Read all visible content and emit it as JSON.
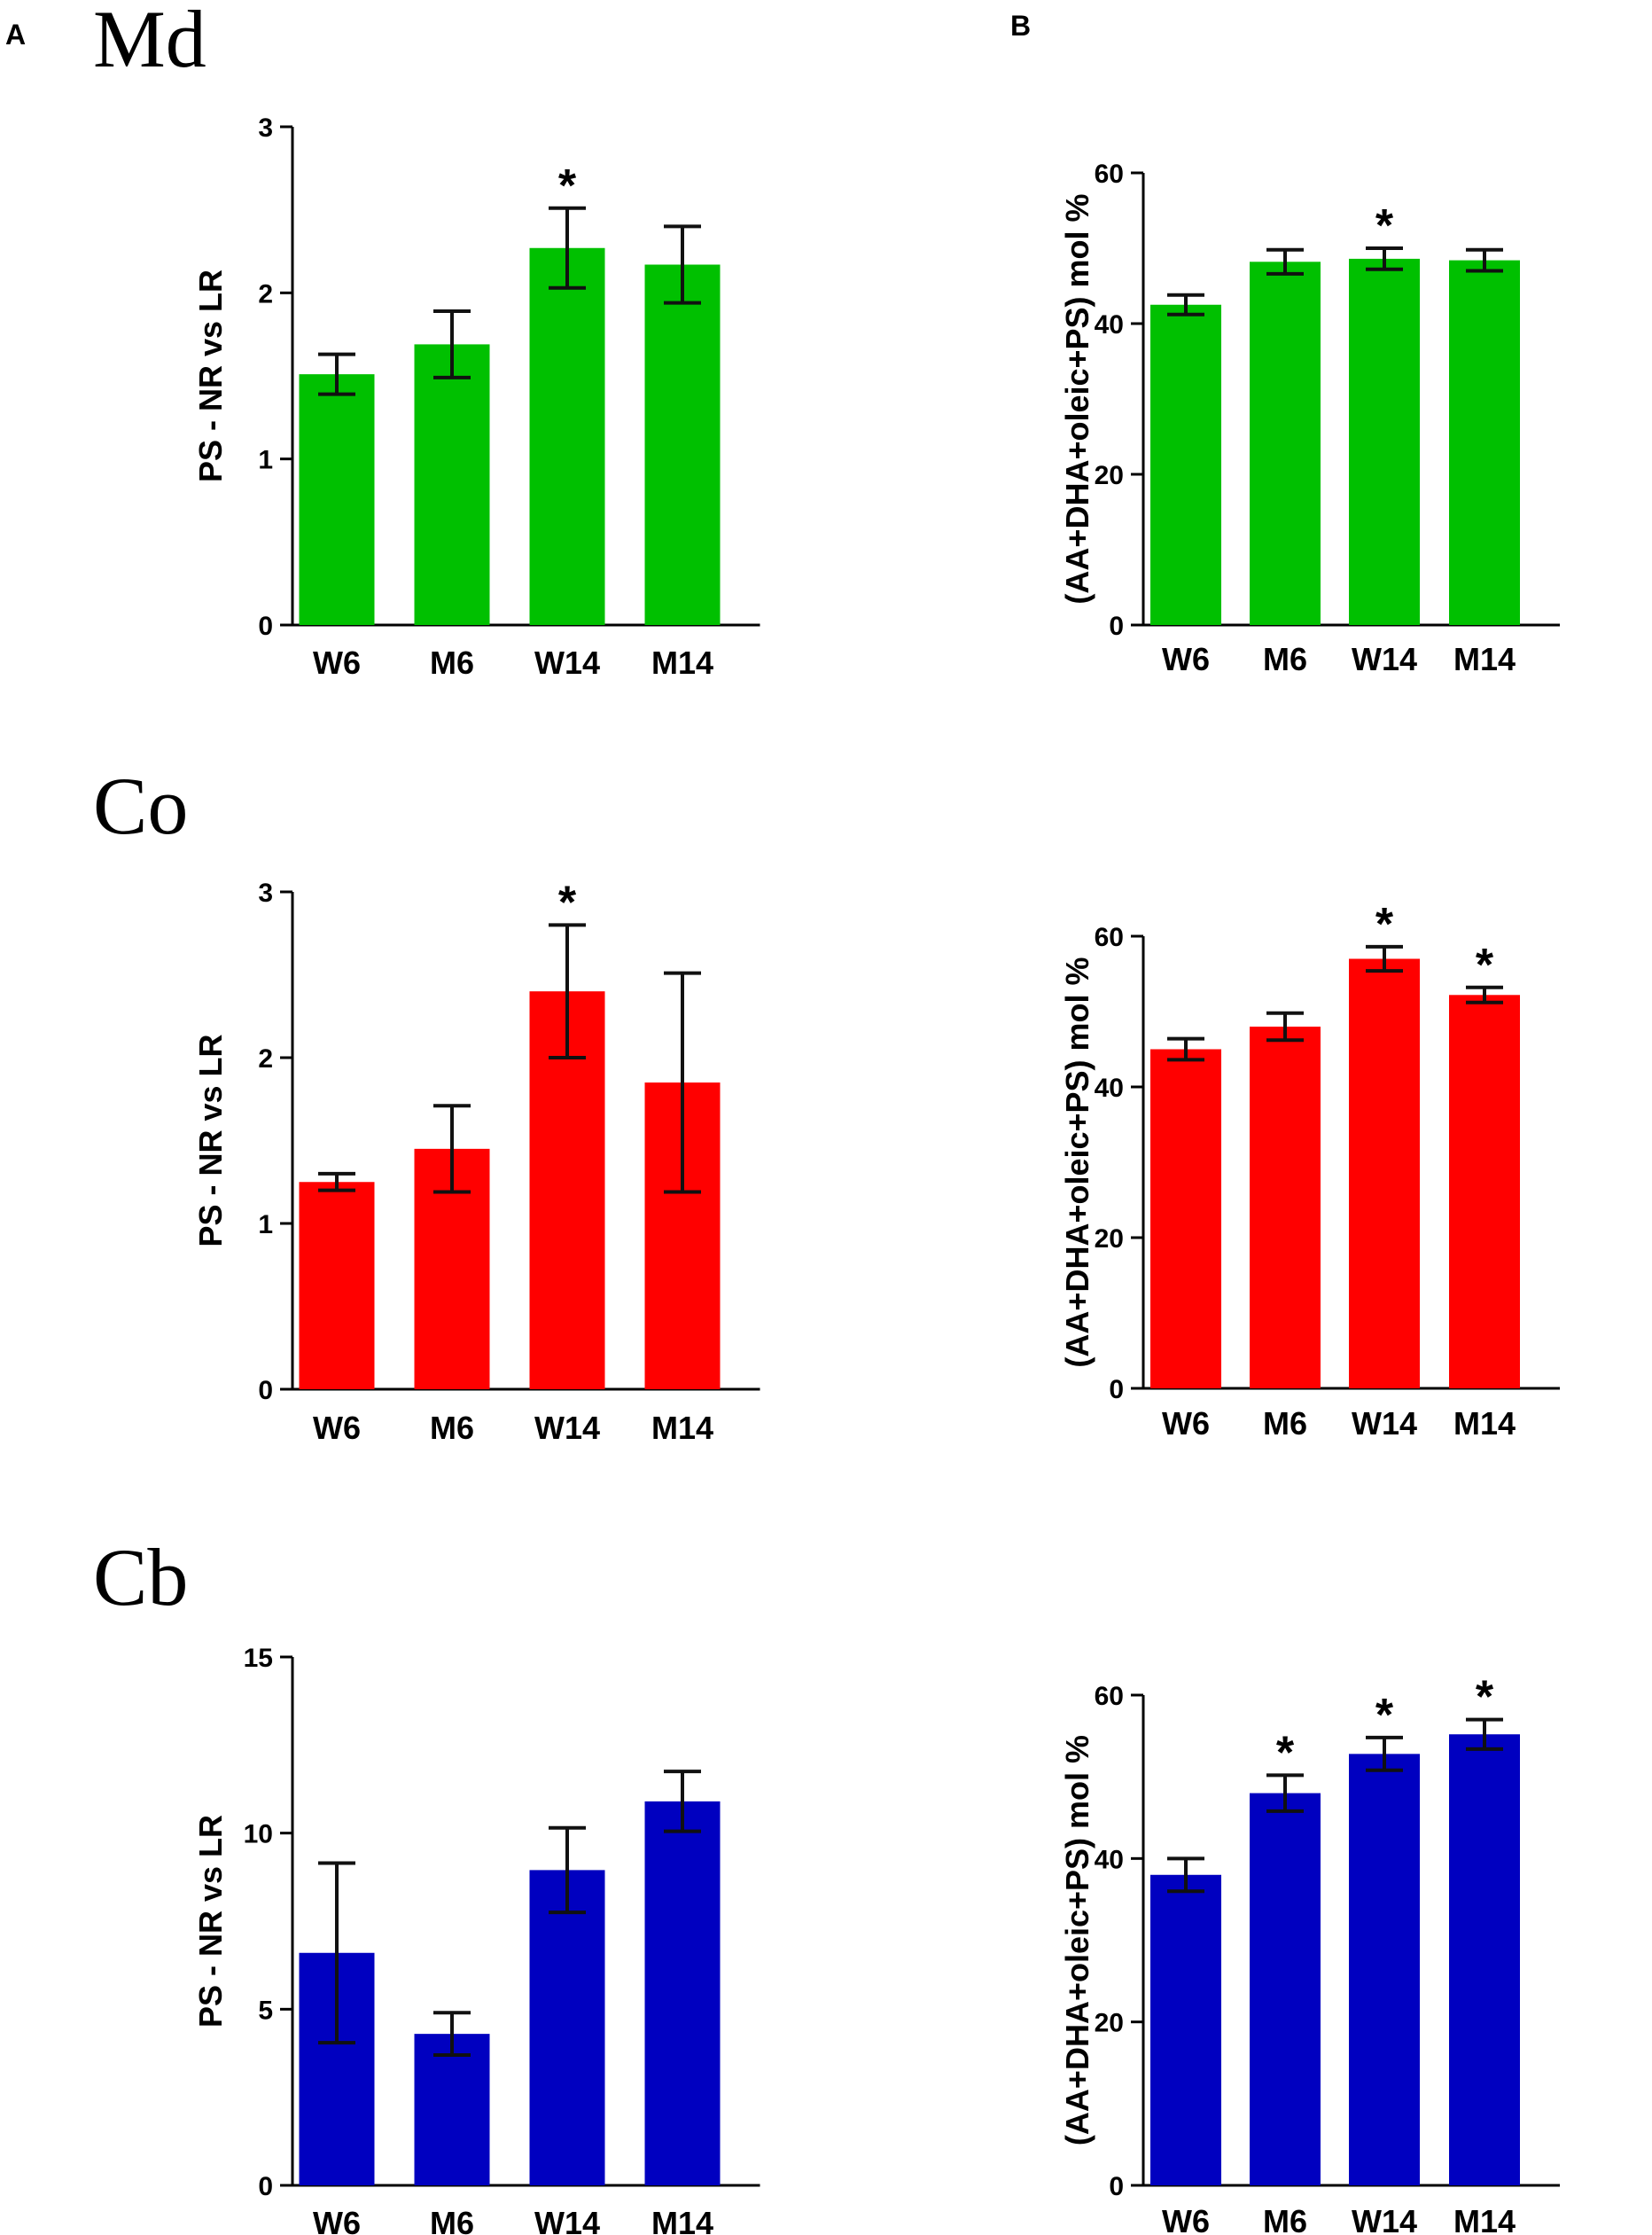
{
  "panel_letters": [
    "A",
    "B"
  ],
  "region_labels": [
    "Md",
    "Co",
    "Cb"
  ],
  "chart_data": [
    {
      "type": "bar",
      "panel": "A",
      "region": "Md",
      "categories": [
        "W6",
        "M6",
        "W14",
        "M14"
      ],
      "values": [
        1.51,
        1.69,
        2.27,
        2.17
      ],
      "errors": [
        0.12,
        0.2,
        0.24,
        0.23
      ],
      "significant": [
        false,
        false,
        true,
        false
      ],
      "ylabel": "PS - NR vs LR",
      "ylim": [
        0,
        3
      ],
      "yticks": [
        0,
        1,
        2,
        3
      ],
      "color": "#00c000"
    },
    {
      "type": "bar",
      "panel": "B",
      "region": "Md",
      "categories": [
        "W6",
        "M6",
        "W14",
        "M14"
      ],
      "values": [
        42.5,
        48.2,
        48.6,
        48.4
      ],
      "errors": [
        1.3,
        1.6,
        1.4,
        1.4
      ],
      "significant": [
        false,
        false,
        true,
        false
      ],
      "ylabel": "(AA+DHA+oleic+PS) mol %",
      "ylim": [
        0,
        60
      ],
      "yticks": [
        0,
        20,
        40,
        60
      ],
      "color": "#00c000"
    },
    {
      "type": "bar",
      "panel": "A",
      "region": "Co",
      "categories": [
        "W6",
        "M6",
        "W14",
        "M14"
      ],
      "values": [
        1.25,
        1.45,
        2.4,
        1.85
      ],
      "errors": [
        0.05,
        0.26,
        0.4,
        0.66
      ],
      "significant": [
        false,
        false,
        true,
        false
      ],
      "ylabel": "PS - NR vs LR",
      "ylim": [
        0,
        3
      ],
      "yticks": [
        0,
        1,
        2,
        3
      ],
      "color": "#ff0000"
    },
    {
      "type": "bar",
      "panel": "B",
      "region": "Co",
      "categories": [
        "W6",
        "M6",
        "W14",
        "M14"
      ],
      "values": [
        45.0,
        48.0,
        57.0,
        52.2
      ],
      "errors": [
        1.4,
        1.8,
        1.6,
        1.0
      ],
      "significant": [
        false,
        false,
        true,
        true
      ],
      "ylabel": "(AA+DHA+oleic+PS) mol %",
      "ylim": [
        0,
        60
      ],
      "yticks": [
        0,
        20,
        40,
        60
      ],
      "color": "#ff0000"
    },
    {
      "type": "bar",
      "panel": "A",
      "region": "Cb",
      "categories": [
        "W6",
        "M6",
        "W14",
        "M14"
      ],
      "values": [
        6.6,
        4.3,
        8.95,
        10.9
      ],
      "errors": [
        2.55,
        0.6,
        1.2,
        0.85
      ],
      "significant": [
        false,
        false,
        false,
        false
      ],
      "ylabel": "PS - NR vs LR",
      "ylim": [
        0,
        15
      ],
      "yticks": [
        0,
        5,
        10,
        15
      ],
      "color": "#0000c0"
    },
    {
      "type": "bar",
      "panel": "B",
      "region": "Cb",
      "categories": [
        "W6",
        "M6",
        "W14",
        "M14"
      ],
      "values": [
        38.0,
        48.0,
        52.8,
        55.2
      ],
      "errors": [
        2.0,
        2.2,
        2.0,
        1.8
      ],
      "significant": [
        false,
        true,
        true,
        true
      ],
      "ylabel": "(AA+DHA+oleic+PS) mol %",
      "ylim": [
        0,
        60
      ],
      "yticks": [
        0,
        20,
        40,
        60
      ],
      "color": "#0000c0"
    }
  ]
}
